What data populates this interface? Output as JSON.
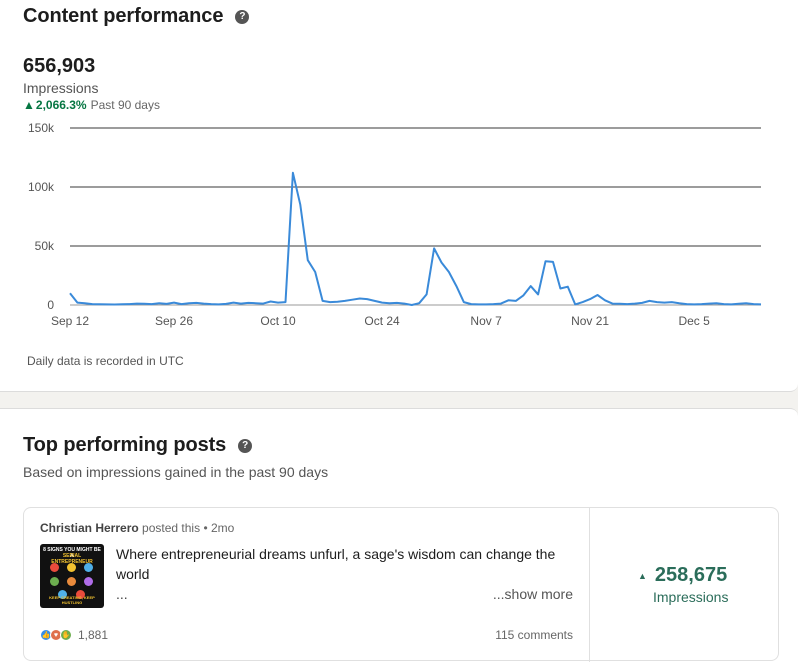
{
  "content_performance": {
    "title": "Content performance",
    "help_icon": "question-circle-icon",
    "total": "656,903",
    "metric": "Impressions",
    "delta": "2,066.3%",
    "period": "Past 90 days",
    "note": "Daily data is recorded in UTC",
    "up_color": "#057642",
    "line_color": "#3a8ad9"
  },
  "chart_data": {
    "type": "line",
    "title": "",
    "xlabel": "",
    "ylabel": "",
    "ylim": [
      0,
      150000
    ],
    "yticks": [
      0,
      50000,
      100000,
      150000
    ],
    "ytick_labels": [
      "0",
      "50k",
      "100k",
      "150k"
    ],
    "xticks": [
      0,
      14,
      28,
      42,
      56,
      70,
      84
    ],
    "xtick_labels": [
      "Sep 12",
      "Sep 26",
      "Oct 10",
      "Oct 24",
      "Nov 7",
      "Nov 21",
      "Dec 5"
    ],
    "grid": "horizontal",
    "series": [
      {
        "values": [
          10000,
          2000,
          1500,
          800,
          600,
          500,
          400,
          600,
          800,
          1200,
          1000,
          800,
          1500,
          900,
          2000,
          800,
          1500,
          1800,
          1200,
          800,
          500,
          900,
          2000,
          1200,
          1800,
          1500,
          1200,
          3000,
          2000,
          2500,
          112000,
          85000,
          38000,
          28000,
          3500,
          2500,
          2800,
          3500,
          4500,
          5500,
          5000,
          3500,
          2000,
          1500,
          1800,
          1200,
          0,
          1500,
          9000,
          48000,
          36000,
          28000,
          16000,
          2500,
          800,
          500,
          500,
          800,
          1200,
          4000,
          3500,
          8000,
          16000,
          9000,
          37000,
          36500,
          14000,
          15500,
          500,
          2500,
          5000,
          8500,
          4000,
          1200,
          1000,
          800,
          1200,
          1800,
          3500,
          2500,
          2000,
          2500,
          1500,
          800,
          500,
          800,
          1200,
          1500,
          800,
          500,
          1000,
          1500,
          800,
          500
        ]
      }
    ]
  },
  "top_posts": {
    "title": "Top performing posts",
    "help_icon": "question-circle-icon",
    "subtitle": "Based on impressions gained in the past 90 days",
    "post": {
      "author": "Christian Herrero",
      "action": "posted this",
      "age": "2mo",
      "thumb_line1": "8 SIGNS YOU MIGHT BE A",
      "thumb_line2": "SERIAL ENTREPRENEUR",
      "thumb_footer": "KEEP CREATING, KEEP HUSTLING",
      "text": "Where entrepreneurial dreams unfurl, a sage's wisdom can change the world",
      "ellipsis": "...",
      "show_more": "...show more",
      "reaction_icons": [
        "like-icon",
        "love-icon",
        "celebrate-icon"
      ],
      "reactions": "1,881",
      "comments": "115 comments",
      "impressions": "258,675",
      "impressions_label": "Impressions",
      "impressions_color": "#2b6d5a"
    }
  }
}
